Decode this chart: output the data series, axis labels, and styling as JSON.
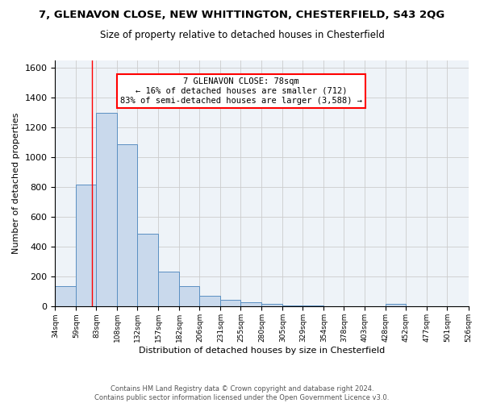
{
  "title1": "7, GLENAVON CLOSE, NEW WHITTINGTON, CHESTERFIELD, S43 2QG",
  "title2": "Size of property relative to detached houses in Chesterfield",
  "xlabel": "Distribution of detached houses by size in Chesterfield",
  "ylabel": "Number of detached properties",
  "bar_color": "#c9d9ec",
  "bar_edgecolor": "#5a8fc2",
  "grid_color": "#cccccc",
  "bg_color": "#eef3f8",
  "red_line_x": 78,
  "annotation_line1": "7 GLENAVON CLOSE: 78sqm",
  "annotation_line2": "← 16% of detached houses are smaller (712)",
  "annotation_line3": "83% of semi-detached houses are larger (3,588) →",
  "annotation_box_color": "white",
  "annotation_box_edgecolor": "red",
  "bin_edges": [
    34,
    59,
    83,
    108,
    132,
    157,
    182,
    206,
    231,
    255,
    280,
    305,
    329,
    354,
    378,
    403,
    428,
    452,
    477,
    501,
    526
  ],
  "bin_labels": [
    "34sqm",
    "59sqm",
    "83sqm",
    "108sqm",
    "132sqm",
    "157sqm",
    "182sqm",
    "206sqm",
    "231sqm",
    "255sqm",
    "280sqm",
    "305sqm",
    "329sqm",
    "354sqm",
    "378sqm",
    "403sqm",
    "428sqm",
    "452sqm",
    "477sqm",
    "501sqm",
    "526sqm"
  ],
  "bar_heights": [
    140,
    820,
    1300,
    1090,
    490,
    235,
    135,
    75,
    45,
    28,
    18,
    10,
    8,
    5,
    3,
    2,
    18,
    0,
    0,
    0,
    0
  ],
  "ylim": [
    0,
    1650
  ],
  "yticks": [
    0,
    200,
    400,
    600,
    800,
    1000,
    1200,
    1400,
    1600
  ],
  "footer": "Contains HM Land Registry data © Crown copyright and database right 2024.\nContains public sector information licensed under the Open Government Licence v3.0.",
  "title1_fontsize": 9.5,
  "title2_fontsize": 8.5,
  "footer_fontsize": 6.0
}
